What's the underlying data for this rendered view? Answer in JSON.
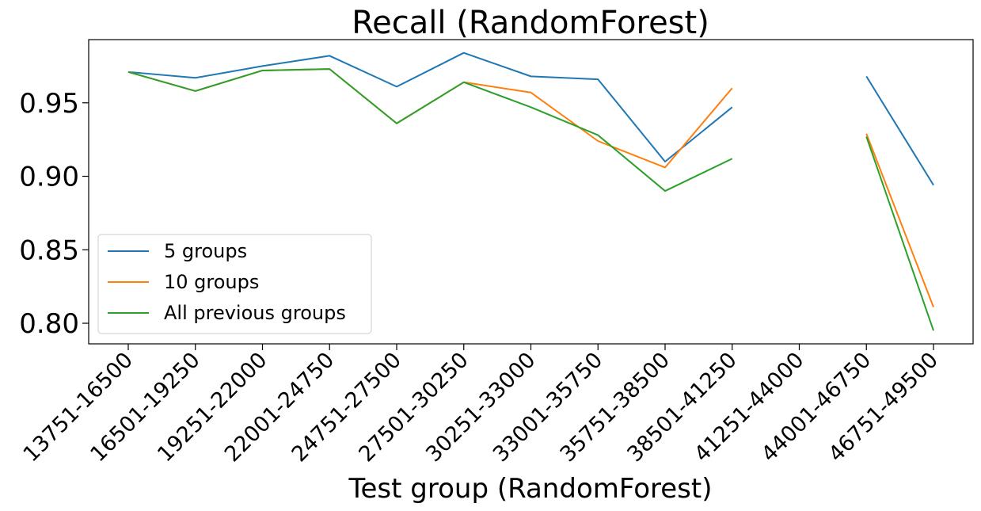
{
  "chart_data": {
    "type": "line",
    "title": "Recall (RandomForest)",
    "xlabel": "Test group (RandomForest)",
    "ylabel": "",
    "categories": [
      "13751-16500",
      "16501-19250",
      "19251-22000",
      "22001-24750",
      "24751-27500",
      "27501-30250",
      "30251-33000",
      "33001-35750",
      "35751-38500",
      "38501-41250",
      "41251-44000",
      "44001-46750",
      "46751-49500"
    ],
    "ylim": [
      0.786,
      0.993
    ],
    "yticks": [
      0.8,
      0.85,
      0.9,
      0.95
    ],
    "ytick_labels": [
      "0.80",
      "0.85",
      "0.90",
      "0.95"
    ],
    "legend_position": "lower-left",
    "series": [
      {
        "name": "5 groups",
        "color": "#1f77b4",
        "values": [
          0.971,
          0.967,
          0.975,
          0.982,
          0.961,
          0.984,
          0.968,
          0.966,
          0.91,
          0.947,
          null,
          0.968,
          0.894
        ]
      },
      {
        "name": "10 groups",
        "color": "#ff7f0e",
        "values": [
          0.971,
          0.958,
          0.972,
          0.973,
          0.936,
          0.964,
          0.957,
          0.924,
          0.906,
          0.96,
          null,
          0.929,
          0.811
        ]
      },
      {
        "name": "All previous groups",
        "color": "#2ca02c",
        "values": [
          0.971,
          0.958,
          0.972,
          0.973,
          0.936,
          0.964,
          0.947,
          0.928,
          0.89,
          0.912,
          null,
          0.927,
          0.795
        ]
      }
    ]
  }
}
